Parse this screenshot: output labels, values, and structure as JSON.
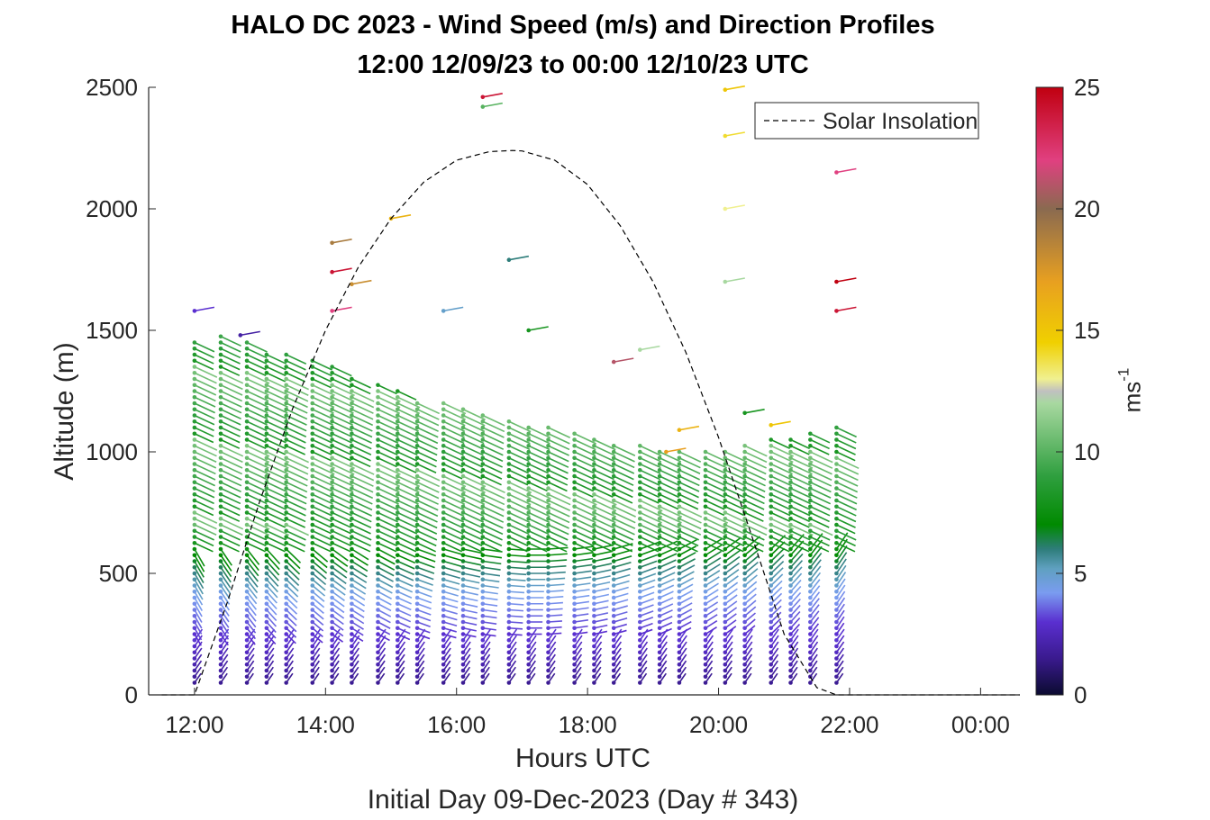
{
  "chart_data": {
    "type": "scatter",
    "title": "HALO DC 2023 - Wind Speed (m/s) and Direction Profiles",
    "subtitle_line": "12:00 12/09/23 to 00:00 12/10/23  UTC",
    "xlabel": "Hours UTC",
    "ylabel": "Altitude (m)",
    "caption": "Initial Day 09-Dec-2023 (Day # 343)",
    "xlim": [
      11.3,
      24.6
    ],
    "ylim": [
      0,
      2500
    ],
    "x_ticks": [
      12,
      14,
      16,
      18,
      20,
      22,
      24
    ],
    "x_tick_labels": [
      "12:00",
      "14:00",
      "16:00",
      "18:00",
      "20:00",
      "22:00",
      "00:00"
    ],
    "y_ticks": [
      0,
      500,
      1000,
      1500,
      2000,
      2500
    ],
    "y_tick_labels": [
      "0",
      "500",
      "1000",
      "1500",
      "2000",
      "2500"
    ],
    "legend": {
      "label": "Solar Insolation",
      "placement": "top-right"
    },
    "solar_insolation": {
      "line_style": "dashed",
      "x": [
        11.5,
        12.0,
        12.5,
        13.0,
        13.5,
        14.0,
        14.5,
        15.0,
        15.5,
        16.0,
        16.5,
        16.85,
        17.0,
        17.5,
        18.0,
        18.5,
        19.0,
        19.5,
        20.0,
        20.5,
        21.0,
        21.5,
        21.8,
        22.0,
        23.0,
        24.0,
        24.6
      ],
      "y": [
        0,
        0,
        380,
        800,
        1180,
        1500,
        1760,
        1960,
        2110,
        2200,
        2235,
        2240,
        2238,
        2200,
        2100,
        1930,
        1700,
        1410,
        1060,
        660,
        250,
        30,
        0,
        0,
        0,
        0,
        0
      ]
    },
    "colorbar": {
      "label": "ms-1",
      "range": [
        0,
        25
      ],
      "ticks": [
        0,
        5,
        10,
        15,
        20,
        25
      ],
      "tick_labels": [
        "0",
        "5",
        "10",
        "15",
        "20",
        "25"
      ],
      "stops": [
        {
          "v": 0,
          "c": "#0b0b30"
        },
        {
          "v": 1.5,
          "c": "#3a1a8e"
        },
        {
          "v": 3,
          "c": "#5a2fd0"
        },
        {
          "v": 4.2,
          "c": "#7a9cf0"
        },
        {
          "v": 5.2,
          "c": "#5fa0c0"
        },
        {
          "v": 6,
          "c": "#2e7d7a"
        },
        {
          "v": 7,
          "c": "#008a00"
        },
        {
          "v": 9,
          "c": "#2f9f3f"
        },
        {
          "v": 12,
          "c": "#a8d8a0"
        },
        {
          "v": 12.5,
          "c": "#c0c0c0"
        },
        {
          "v": 13,
          "c": "#f0f090"
        },
        {
          "v": 14.5,
          "c": "#f0d000"
        },
        {
          "v": 17,
          "c": "#e8a020"
        },
        {
          "v": 20,
          "c": "#8a6a50"
        },
        {
          "v": 22,
          "c": "#e04080"
        },
        {
          "v": 25,
          "c": "#c00010"
        }
      ]
    },
    "profile_times": [
      12.0,
      12.4,
      12.8,
      13.1,
      13.4,
      13.8,
      14.1,
      14.4,
      14.8,
      15.1,
      15.4,
      15.8,
      16.1,
      16.4,
      16.8,
      17.1,
      17.4,
      17.8,
      18.1,
      18.4,
      18.8,
      19.1,
      19.4,
      19.8,
      20.1,
      20.4,
      20.8,
      21.1,
      21.4,
      21.8
    ],
    "profile_tops": [
      1450,
      1480,
      1460,
      1420,
      1400,
      1380,
      1360,
      1300,
      1280,
      1260,
      1220,
      1200,
      1180,
      1160,
      1130,
      1120,
      1100,
      1080,
      1060,
      1040,
      1030,
      1020,
      1010,
      1000,
      1020,
      1040,
      1060,
      1070,
      1080,
      1100
    ]
  }
}
